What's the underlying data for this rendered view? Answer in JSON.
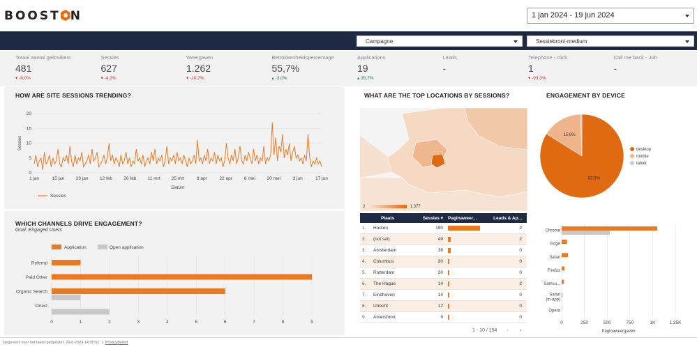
{
  "header": {
    "logo_text": "BOOST N",
    "date_range": "1 jan 2024 - 19 jun 2024"
  },
  "filters": {
    "campaign": "Campagne",
    "source": "Sessiebron/-medium"
  },
  "kpis": [
    {
      "label": "Totaal aantal gebruikers",
      "value": "481",
      "change": "-8,0%",
      "dir": "down"
    },
    {
      "label": "Sessies",
      "value": "627",
      "change": "-4,3%",
      "dir": "down"
    },
    {
      "label": "Weergaven",
      "value": "1.262",
      "change": "-10,7%",
      "dir": "down"
    },
    {
      "label": "Betrokkenheidspercentage",
      "value": "55,7%",
      "change": "-3,0%",
      "dir": "up"
    },
    {
      "label": "Applications",
      "value": "19",
      "change": "35,7%",
      "dir": "up"
    },
    {
      "label": "Leads",
      "value": "-",
      "change": "",
      "dir": ""
    },
    {
      "label": "Telephone - click",
      "value": "1",
      "change": "-93,3%",
      "dir": "down"
    },
    {
      "label": "Call me back - Job",
      "value": "-",
      "change": "",
      "dir": ""
    }
  ],
  "sessions_panel": {
    "title": "HOW ARE SITE SESSIONS TRENDING?",
    "xlabel": "Datum",
    "ylabel": "Sessies",
    "legend": "Sessies"
  },
  "channels_panel": {
    "title": "WHICH CHANNELS DRIVE ENGAGEMENT?",
    "subtitle": "Goal: Engaged Users",
    "legend_a": "Application",
    "legend_b": "Open application"
  },
  "locations_panel": {
    "title": "WHAT ARE THE TOP LOCATIONS BY SESSIONS?",
    "scale_min": "2",
    "scale_max": "1.377",
    "columns": [
      "Plaats",
      "Sessies ▾",
      "Paginaweer...",
      "Leads & Ap..."
    ],
    "rows": [
      {
        "n": "1.",
        "city": "Houten",
        "sessions": "190",
        "pv": 0.95,
        "leads": "2"
      },
      {
        "n": "2.",
        "city": "(not set)",
        "sessions": "49",
        "pv": 0.08,
        "leads": "2"
      },
      {
        "n": "3.",
        "city": "Amsterdam",
        "sessions": "38",
        "pv": 0.09,
        "leads": "0"
      },
      {
        "n": "4.",
        "city": "Columbus",
        "sessions": "30",
        "pv": 0.04,
        "leads": "0"
      },
      {
        "n": "5.",
        "city": "Rotterdam",
        "sessions": "20",
        "pv": 0.05,
        "leads": "0"
      },
      {
        "n": "6.",
        "city": "The Hague",
        "sessions": "14",
        "pv": 0.04,
        "leads": "2"
      },
      {
        "n": "7.",
        "city": "Eindhoven",
        "sessions": "14",
        "pv": 0.03,
        "leads": "0"
      },
      {
        "n": "8.",
        "city": "Utrecht",
        "sessions": "12",
        "pv": 0.03,
        "leads": "0"
      },
      {
        "n": "9.",
        "city": "Amersfoort",
        "sessions": "9",
        "pv": 0.03,
        "leads": "0"
      }
    ],
    "pagination": "1 - 10 / 154"
  },
  "device_panel": {
    "title": "ENGAGEMENT BY DEVICE",
    "browser_xlabel": "Paginaweergaven"
  },
  "footer": {
    "text": "Gegevens voor het laatst geüpdatet: 20-6-2024 14:06:52",
    "link": "Privacybeleid"
  },
  "colors": {
    "accent": "#ea6a0c",
    "navy": "#1e2a44",
    "light": "#f0b48a",
    "grey": "#c8c8c8"
  },
  "chart_data": [
    {
      "type": "line",
      "title": "HOW ARE SITE SESSIONS TRENDING?",
      "xlabel": "Datum",
      "ylabel": "Sessies",
      "ylim": [
        0,
        20
      ],
      "yticks": [
        0,
        5,
        10,
        15,
        20
      ],
      "xticks": [
        "1 jan",
        "15 jan",
        "29 jan",
        "12 feb",
        "26 feb",
        "11 mrt",
        "25 mrt",
        "8 apr",
        "22 apr",
        "6 mei",
        "20 mei",
        "3 jun",
        "17 jun"
      ],
      "series": [
        {
          "name": "Sessies",
          "values": [
            3,
            6,
            2,
            4,
            5,
            1,
            7,
            3,
            4,
            6,
            2,
            5,
            3,
            4,
            8,
            3,
            2,
            5,
            4,
            6,
            3,
            9,
            4,
            2,
            6,
            3,
            5,
            4,
            7,
            2,
            3,
            4,
            6,
            3,
            8,
            4,
            5,
            7,
            2,
            3,
            4,
            6,
            3,
            5,
            10,
            4,
            6,
            3,
            5,
            4,
            2,
            6,
            3,
            4,
            7,
            3,
            5,
            2,
            4,
            3,
            8,
            4,
            5,
            3,
            6,
            2,
            4,
            5,
            3,
            7,
            4,
            8,
            3,
            5,
            4,
            6,
            2,
            4,
            9,
            3,
            5,
            4,
            6,
            3,
            7,
            4,
            5,
            3,
            6,
            4,
            2,
            5,
            3,
            4,
            6,
            3,
            11,
            4,
            5,
            3,
            6,
            4,
            8,
            3,
            5,
            4,
            7,
            3,
            6,
            4,
            5,
            2,
            4,
            10,
            5,
            3,
            6,
            4,
            8,
            3,
            5,
            9,
            4,
            3,
            6,
            4,
            7,
            5,
            3,
            8,
            4,
            6,
            3,
            5,
            4,
            9,
            3,
            5,
            4,
            6,
            17,
            6,
            12,
            4,
            9,
            7,
            13,
            5,
            8,
            6,
            10,
            4,
            7,
            9,
            5,
            6,
            4,
            5,
            3,
            6,
            4,
            13,
            5,
            2,
            4,
            3,
            5,
            3,
            4,
            2
          ]
        }
      ]
    },
    {
      "type": "bar",
      "title": "WHICH CHANNELS DRIVE ENGAGEMENT?",
      "categories": [
        "Referral",
        "Paid Other",
        "Organic Search",
        "Direct"
      ],
      "xlim": [
        0,
        9
      ],
      "xticks": [
        0,
        1,
        2,
        3,
        4,
        5,
        6,
        7,
        8,
        9
      ],
      "series": [
        {
          "name": "Application",
          "values": [
            1,
            9,
            6,
            0
          ]
        },
        {
          "name": "Open application",
          "values": [
            0,
            0,
            1,
            2
          ]
        }
      ]
    },
    {
      "type": "pie",
      "title": "ENGAGEMENT BY DEVICE",
      "labels": [
        "desktop",
        "mobile",
        "tablet"
      ],
      "values": [
        83.9,
        15.6,
        0.5
      ],
      "value_labels": [
        "83,9%",
        "15,6%",
        ""
      ]
    },
    {
      "type": "bar",
      "xlabel": "Paginaweergaven",
      "categories": [
        "Chrome",
        "Edge",
        "Safari",
        "Firefox",
        "Samsu...",
        "Safari (in-app)",
        "Opera"
      ],
      "xlim": [
        0,
        1250
      ],
      "xticks": [
        "0",
        "250",
        "500",
        "750",
        "1K",
        "1,25K"
      ],
      "series": [
        {
          "name": "primary",
          "values": [
            1050,
            60,
            70,
            30,
            25,
            8,
            3
          ]
        },
        {
          "name": "secondary",
          "values": [
            530,
            0,
            0,
            0,
            0,
            0,
            0
          ]
        }
      ]
    }
  ]
}
